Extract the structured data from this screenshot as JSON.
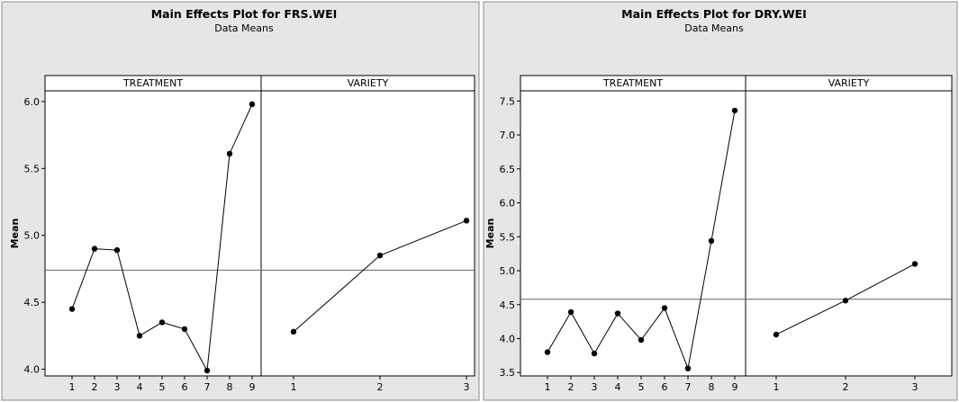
{
  "chart_data": [
    {
      "type": "line",
      "title": "Main Effects Plot for FRS.WEI",
      "subtitle": "Data Means",
      "ylabel": "Mean",
      "ylim": [
        3.95,
        6.08
      ],
      "yticks": [
        4.0,
        4.5,
        5.0,
        5.5,
        6.0
      ],
      "ytick_labels": [
        "4.0",
        "4.5",
        "5.0",
        "5.5",
        "6.0"
      ],
      "overall_mean": 4.74,
      "panels": [
        {
          "name": "TREATMENT",
          "x": [
            "1",
            "2",
            "3",
            "4",
            "5",
            "6",
            "7",
            "8",
            "9"
          ],
          "values": [
            4.45,
            4.9,
            4.89,
            4.25,
            4.35,
            4.3,
            3.99,
            5.61,
            5.98
          ]
        },
        {
          "name": "VARIETY",
          "x": [
            "1",
            "2",
            "3"
          ],
          "values": [
            4.28,
            4.85,
            5.11
          ]
        }
      ]
    },
    {
      "type": "line",
      "title": "Main Effects Plot for DRY.WEI",
      "subtitle": "Data Means",
      "ylabel": "Mean",
      "ylim": [
        3.45,
        7.65
      ],
      "yticks": [
        3.5,
        4.0,
        4.5,
        5.0,
        5.5,
        6.0,
        6.5,
        7.0,
        7.5
      ],
      "ytick_labels": [
        "3.5",
        "4.0",
        "4.5",
        "5.0",
        "5.5",
        "6.0",
        "6.5",
        "7.0",
        "7.5"
      ],
      "overall_mean": 4.58,
      "panels": [
        {
          "name": "TREATMENT",
          "x": [
            "1",
            "2",
            "3",
            "4",
            "5",
            "6",
            "7",
            "8",
            "9"
          ],
          "values": [
            3.8,
            4.39,
            3.78,
            4.37,
            3.98,
            4.45,
            3.56,
            5.44,
            7.36
          ]
        },
        {
          "name": "VARIETY",
          "x": [
            "1",
            "2",
            "3"
          ],
          "values": [
            4.06,
            4.56,
            5.1
          ]
        }
      ]
    }
  ]
}
